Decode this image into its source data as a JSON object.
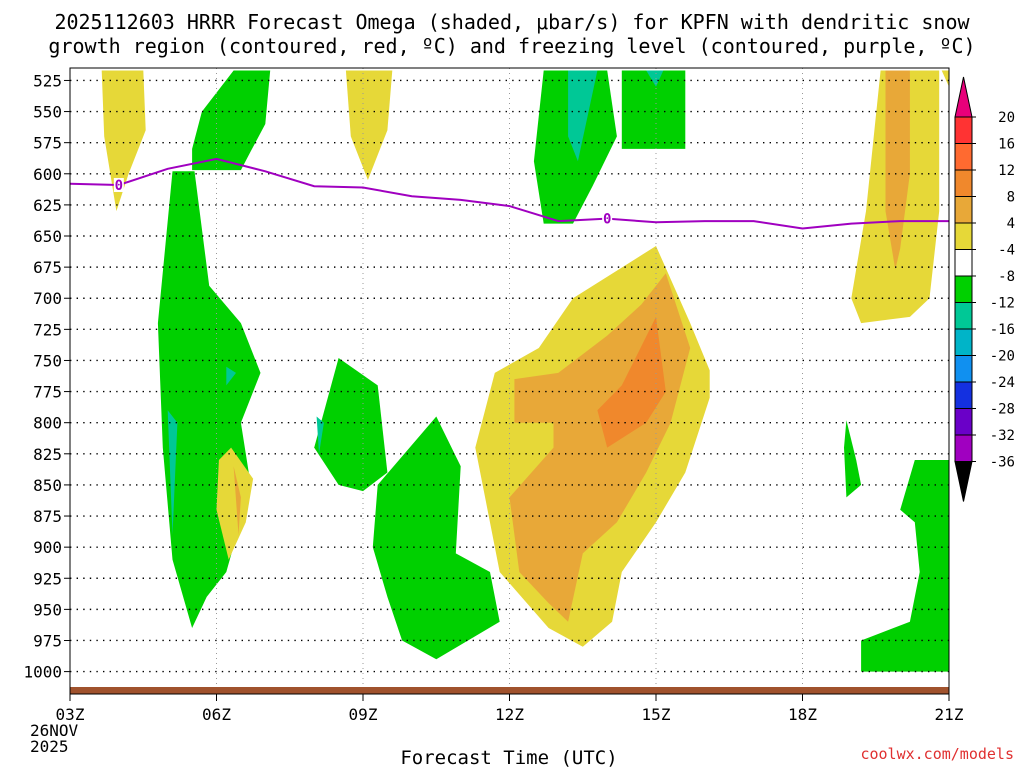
{
  "chart_data": {
    "type": "heatmap",
    "title_line1": "2025112603 HRRR Forecast Omega (shaded, μbar/s) for KPFN with dendritic snow",
    "title_line2": "growth region (contoured, red, ºC) and freezing level (contoured, purple, ºC)",
    "xlabel": "Forecast Time (UTC)",
    "x_hours": [
      3,
      6,
      9,
      12,
      15,
      18,
      21
    ],
    "x_tick_labels": [
      "03Z",
      "06Z",
      "09Z",
      "12Z",
      "15Z",
      "18Z",
      "21Z"
    ],
    "x_date_line1": "26NOV",
    "x_date_line2": "2025",
    "xlim": [
      3,
      21
    ],
    "y_levels": [
      525,
      550,
      575,
      600,
      625,
      650,
      675,
      700,
      725,
      750,
      775,
      800,
      825,
      850,
      875,
      900,
      925,
      950,
      975,
      1000
    ],
    "y_tick_labels": [
      "525",
      "550",
      "575",
      "600",
      "625",
      "650",
      "675",
      "700",
      "725",
      "750",
      "775",
      "800",
      "825",
      "850",
      "875",
      "900",
      "925",
      "950",
      "975",
      "1000"
    ],
    "ylim": [
      515,
      1018
    ],
    "colorbar_ticks": [
      "20",
      "16",
      "12",
      "8",
      "4",
      "-4",
      "-8",
      "-12",
      "-16",
      "-20",
      "-24",
      "-28",
      "-32",
      "-36"
    ],
    "colorbar_bins": [
      {
        "from": 20,
        "to": 24,
        "color": "#e8007a"
      },
      {
        "from": 16,
        "to": 20,
        "color": "#ff3333"
      },
      {
        "from": 12,
        "to": 16,
        "color": "#ff6a30"
      },
      {
        "from": 8,
        "to": 12,
        "color": "#f0882c"
      },
      {
        "from": 4,
        "to": 8,
        "color": "#e8a838"
      },
      {
        "from": -4,
        "to": 4,
        "color": "#e6d838"
      },
      {
        "from": -8,
        "to": -4,
        "color": "#ffffff"
      },
      {
        "from": -12,
        "to": -8,
        "color": "#00d000"
      },
      {
        "from": -16,
        "to": -12,
        "color": "#00c896"
      },
      {
        "from": -20,
        "to": -16,
        "color": "#00b4c8"
      },
      {
        "from": -24,
        "to": -20,
        "color": "#1090f0"
      },
      {
        "from": -28,
        "to": -24,
        "color": "#1430e0"
      },
      {
        "from": -32,
        "to": -28,
        "color": "#6a00c8"
      },
      {
        "from": -36,
        "to": -32,
        "color": "#a000c0"
      },
      {
        "from": -40,
        "to": -36,
        "color": "#a6a6a6"
      }
    ],
    "freezing_level": {
      "label": "0",
      "color": "#a000c0",
      "points": [
        [
          3,
          608
        ],
        [
          4,
          609
        ],
        [
          5,
          596
        ],
        [
          6,
          588
        ],
        [
          7,
          598
        ],
        [
          8,
          610
        ],
        [
          9,
          611
        ],
        [
          10,
          618
        ],
        [
          11,
          621
        ],
        [
          12,
          626
        ],
        [
          12.5,
          632
        ],
        [
          13,
          638
        ],
        [
          14,
          636
        ],
        [
          15,
          639
        ],
        [
          16,
          638
        ],
        [
          17,
          638
        ],
        [
          18,
          644
        ],
        [
          19,
          640
        ],
        [
          20,
          638
        ],
        [
          21,
          638
        ]
      ],
      "label_positions": [
        [
          4,
          609
        ],
        [
          14,
          636
        ]
      ]
    },
    "omega_regions": [
      {
        "name": "yellow-a",
        "color": "#e6d838",
        "points": [
          [
            3.65,
            517
          ],
          [
            4.5,
            517
          ],
          [
            4.55,
            565
          ],
          [
            4.2,
            600
          ],
          [
            3.95,
            630
          ],
          [
            3.7,
            570
          ]
        ]
      },
      {
        "name": "green-a",
        "color": "#00d000",
        "points": [
          [
            6.35,
            517
          ],
          [
            7.1,
            517
          ],
          [
            7.0,
            560
          ],
          [
            6.7,
            582
          ],
          [
            6.5,
            597
          ],
          [
            5.5,
            597
          ],
          [
            5.5,
            580
          ],
          [
            5.7,
            550
          ]
        ]
      },
      {
        "name": "yellow-b",
        "color": "#e6d838",
        "points": [
          [
            8.65,
            517
          ],
          [
            9.6,
            517
          ],
          [
            9.5,
            565
          ],
          [
            9.1,
            605
          ],
          [
            8.75,
            570
          ]
        ]
      },
      {
        "name": "green-b",
        "color": "#00d000",
        "points": [
          [
            12.7,
            517
          ],
          [
            14.0,
            517
          ],
          [
            14.2,
            570
          ],
          [
            13.7,
            610
          ],
          [
            13.3,
            640
          ],
          [
            12.7,
            640
          ],
          [
            12.5,
            590
          ]
        ]
      },
      {
        "name": "teal-b",
        "color": "#00c896",
        "points": [
          [
            13.2,
            517
          ],
          [
            13.8,
            517
          ],
          [
            13.4,
            590
          ],
          [
            13.2,
            570
          ]
        ]
      },
      {
        "name": "green-c",
        "color": "#00d000",
        "points": [
          [
            14.3,
            517
          ],
          [
            15.6,
            517
          ],
          [
            15.6,
            580
          ],
          [
            14.3,
            580
          ]
        ]
      },
      {
        "name": "teal-c",
        "color": "#00c896",
        "points": [
          [
            14.8,
            517
          ],
          [
            15.15,
            517
          ],
          [
            15.0,
            530
          ]
        ]
      },
      {
        "name": "yellow-c",
        "color": "#e6d838",
        "points": [
          [
            19.6,
            517
          ],
          [
            20.8,
            517
          ],
          [
            20.8,
            630
          ],
          [
            20.6,
            700
          ],
          [
            20.2,
            715
          ],
          [
            19.2,
            720
          ],
          [
            19.0,
            700
          ],
          [
            19.3,
            630
          ]
        ]
      },
      {
        "name": "orange-c",
        "color": "#e8a838",
        "points": [
          [
            19.7,
            517
          ],
          [
            20.2,
            517
          ],
          [
            20.2,
            600
          ],
          [
            20.0,
            660
          ],
          [
            19.9,
            677
          ],
          [
            19.7,
            630
          ]
        ]
      },
      {
        "name": "yellow-d",
        "color": "#e6d838",
        "points": [
          [
            20.85,
            517
          ],
          [
            21.0,
            517
          ],
          [
            21.0,
            530
          ]
        ]
      },
      {
        "name": "green-d",
        "color": "#00d000",
        "points": [
          [
            5.1,
            598
          ],
          [
            5.55,
            598
          ],
          [
            5.85,
            690
          ],
          [
            6.5,
            720
          ],
          [
            6.9,
            760
          ],
          [
            6.5,
            800
          ],
          [
            6.7,
            850
          ],
          [
            6.2,
            920
          ],
          [
            5.8,
            940
          ],
          [
            5.5,
            965
          ],
          [
            5.1,
            910
          ],
          [
            4.9,
            820
          ],
          [
            4.8,
            720
          ]
        ]
      },
      {
        "name": "teal-d1",
        "color": "#00c896",
        "points": [
          [
            5.0,
            790
          ],
          [
            5.2,
            800
          ],
          [
            5.1,
            890
          ]
        ]
      },
      {
        "name": "teal-d2",
        "color": "#00c896",
        "points": [
          [
            6.2,
            755
          ],
          [
            6.4,
            760
          ],
          [
            6.2,
            770
          ]
        ]
      },
      {
        "name": "yellow-e",
        "color": "#e6d838",
        "points": [
          [
            6.3,
            820
          ],
          [
            6.75,
            845
          ],
          [
            6.6,
            880
          ],
          [
            6.25,
            910
          ],
          [
            6.0,
            870
          ],
          [
            6.05,
            830
          ]
        ]
      },
      {
        "name": "orange-e",
        "color": "#e8a838",
        "points": [
          [
            6.35,
            835
          ],
          [
            6.5,
            860
          ],
          [
            6.45,
            890
          ]
        ]
      },
      {
        "name": "green-e",
        "color": "#00d000",
        "points": [
          [
            8.5,
            748
          ],
          [
            9.3,
            770
          ],
          [
            9.5,
            840
          ],
          [
            9.0,
            855
          ],
          [
            8.5,
            850
          ],
          [
            8.0,
            820
          ]
        ]
      },
      {
        "name": "teal-e",
        "color": "#00c896",
        "points": [
          [
            8.05,
            795
          ],
          [
            8.2,
            800
          ],
          [
            8.1,
            825
          ]
        ]
      },
      {
        "name": "green-f",
        "color": "#00d000",
        "points": [
          [
            10.5,
            795
          ],
          [
            11.0,
            835
          ],
          [
            10.9,
            905
          ],
          [
            11.6,
            920
          ],
          [
            11.8,
            960
          ],
          [
            10.5,
            990
          ],
          [
            9.8,
            975
          ],
          [
            9.5,
            940
          ],
          [
            9.2,
            900
          ],
          [
            9.3,
            850
          ]
        ]
      },
      {
        "name": "yellow-f",
        "color": "#e6d838",
        "points": [
          [
            15.0,
            658
          ],
          [
            15.7,
            720
          ],
          [
            16.1,
            758
          ],
          [
            16.1,
            780
          ],
          [
            15.6,
            840
          ],
          [
            15.0,
            880
          ],
          [
            14.3,
            920
          ],
          [
            14.1,
            960
          ],
          [
            13.5,
            980
          ],
          [
            12.8,
            965
          ],
          [
            11.8,
            920
          ],
          [
            11.5,
            860
          ],
          [
            11.3,
            820
          ],
          [
            11.7,
            760
          ],
          [
            12.6,
            740
          ],
          [
            13.3,
            700
          ]
        ]
      },
      {
        "name": "orange-f",
        "color": "#e8a838",
        "points": [
          [
            15.2,
            680
          ],
          [
            15.7,
            740
          ],
          [
            15.3,
            800
          ],
          [
            14.8,
            840
          ],
          [
            14.2,
            880
          ],
          [
            13.5,
            905
          ],
          [
            13.2,
            960
          ],
          [
            12.8,
            945
          ],
          [
            12.2,
            920
          ],
          [
            12.0,
            860
          ],
          [
            12.9,
            820
          ],
          [
            12.9,
            800
          ],
          [
            12.1,
            800
          ],
          [
            12.1,
            765
          ],
          [
            13.0,
            760
          ],
          [
            14.0,
            730
          ],
          [
            14.7,
            705
          ]
        ]
      },
      {
        "name": "red-f",
        "color": "#f0882c",
        "points": [
          [
            15.0,
            715
          ],
          [
            15.2,
            775
          ],
          [
            14.8,
            800
          ],
          [
            14.0,
            820
          ],
          [
            13.8,
            790
          ],
          [
            14.3,
            770
          ]
        ]
      },
      {
        "name": "green-g",
        "color": "#00d000",
        "points": [
          [
            20.95,
            830
          ],
          [
            21.0,
            830
          ],
          [
            21.0,
            1000
          ],
          [
            19.2,
            1000
          ],
          [
            19.2,
            975
          ],
          [
            20.2,
            960
          ],
          [
            20.4,
            920
          ],
          [
            20.3,
            880
          ],
          [
            20.0,
            870
          ],
          [
            20.3,
            830
          ]
        ]
      },
      {
        "name": "green-h",
        "color": "#00d000",
        "points": [
          [
            18.9,
            798
          ],
          [
            19.1,
            830
          ],
          [
            19.2,
            850
          ],
          [
            18.9,
            860
          ],
          [
            18.85,
            820
          ]
        ]
      }
    ]
  },
  "credit": "coolwx.com/models"
}
